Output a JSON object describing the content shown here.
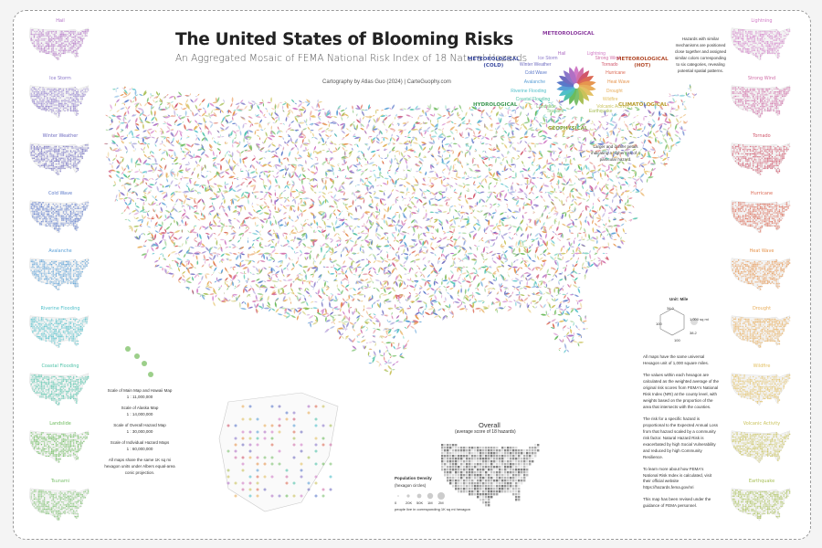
{
  "title": "The United States of Blooming Risks",
  "subtitle": "An Aggregated Mosaic of FEMA National Risk Index of 18 Natural Hazards",
  "credit": "Cartography by Atlas Guo (2024)  |  CarteGuophy.com",
  "left_maps": [
    {
      "label": "Hail",
      "color": "#b06fc4"
    },
    {
      "label": "Ice Storm",
      "color": "#8a77c9"
    },
    {
      "label": "Winter Weather",
      "color": "#6f6cc0"
    },
    {
      "label": "Cold Wave",
      "color": "#5a78c9"
    },
    {
      "label": "Avalanche",
      "color": "#5a9fd6"
    },
    {
      "label": "Riverine Flooding",
      "color": "#4fbfc9"
    },
    {
      "label": "Coastal Flooding",
      "color": "#4fc2a8"
    },
    {
      "label": "Landslide",
      "color": "#6cbb5c"
    },
    {
      "label": "Tsunami",
      "color": "#7cc06e"
    }
  ],
  "right_maps": [
    {
      "label": "Lightning",
      "color": "#d17bc6"
    },
    {
      "label": "Strong Wind",
      "color": "#d06fa8"
    },
    {
      "label": "Tornado",
      "color": "#d0566b"
    },
    {
      "label": "Hurricane",
      "color": "#dc6a55"
    },
    {
      "label": "Heat Wave",
      "color": "#e6954f"
    },
    {
      "label": "Drought",
      "color": "#e8ad5a"
    },
    {
      "label": "Wildfire",
      "color": "#e3c063"
    },
    {
      "label": "Volcanic Activity",
      "color": "#c9c25a"
    },
    {
      "label": "Earthquake",
      "color": "#a7bf55"
    }
  ],
  "legend": {
    "categories": {
      "meteorological": "METEOROLOGICAL",
      "meteo_cold": "METEOROLOGICAL\n(COLD)",
      "meteo_hot": "METEOROLOGICAL\n(HOT)",
      "hydrological": "HYDROLOGICAL",
      "climatological": "CLIMATOLOGICAL",
      "geophysical": "GEOPHYSICAL"
    },
    "hazards_left": [
      "Hail",
      "Ice Storm",
      "Winter Weather",
      "Cold Wave",
      "Avalanche",
      "Riverine Flooding",
      "Coastal Flooding",
      "Landslide",
      "Tsunami"
    ],
    "hazards_right": [
      "Lightning",
      "Strong Wind",
      "Tornado",
      "Hurricane",
      "Heat Wave",
      "Drought",
      "Wildfire",
      "Volcanic Activity",
      "Earthquake"
    ],
    "note": "Hazards with similar mechanisms are positioned close together and assigned similar colors corresponding to six categories, revealing potential spatial patterns.",
    "petal_note": "Larger and darker petals indicating a higher risk of a particular hazard."
  },
  "unit": {
    "title": "Unit: Mile",
    "labels": [
      "34.0",
      "1,000 sq mi",
      "38.2",
      "100",
      "100"
    ]
  },
  "scales": [
    "Scale of Main Map and Hawaii Map",
    "1 : 11,000,000",
    "Scale of Alaska Map",
    "1 : 14,000,000",
    "Scale of Overall Hazard Map",
    "1 : 30,000,000",
    "Scale of Individual Hazard Maps",
    "1 : 60,000,000",
    "All maps share the same 1K sq mi hexagon units under Albers equal-area conic projection."
  ],
  "overall": {
    "title": "Overall",
    "subtitle": "(average score of 18 hazards)"
  },
  "population": {
    "title": "Population Density",
    "subtitle": "(hexagon circles)",
    "ticks": [
      "0",
      "20K",
      "50K",
      "1M",
      "2M"
    ],
    "note": "people live in corresponding 1K sq mi hexagon"
  },
  "notes": [
    "All maps have the same universal Hexagon unit of 1,000 square miles.",
    "The values within each hexagon are calculated as the weighted average of the original risk scores from FEMA's National Risk Index (NRI) at the county level, with weights based on the proportion of the area that intersects with the counties.",
    "The risk for a specific hazard is proportional to the Expected Annual Loss from that hazard scaled by a community risk factor. Natural Hazard Risk is exacerbated by high Social Vulnerability and reduced by high Community Resilience.",
    "To learn more about how FEMA's National Risk Index is calculated, visit their official website https://hazards.fema.gov/nri",
    "This map has been revised under the guidance of FEMA personnel."
  ]
}
